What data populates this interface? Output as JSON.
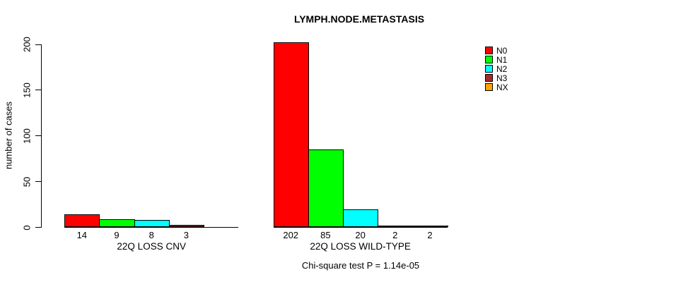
{
  "chart_data": {
    "type": "bar",
    "title": "LYMPH.NODE.METASTASIS",
    "ylabel": "number of cases",
    "xlabel": "",
    "ylim": [
      0,
      200
    ],
    "yticks": [
      0,
      50,
      100,
      150,
      200
    ],
    "grid": false,
    "legend_position": "right",
    "series_names": [
      "N0",
      "N1",
      "N2",
      "N3",
      "NX"
    ],
    "colors": [
      "#FF0000",
      "#00FF00",
      "#00FFFF",
      "#A52A2A",
      "#FFA500"
    ],
    "groups": [
      {
        "label": "22Q LOSS CNV",
        "values": [
          14,
          9,
          8,
          3,
          0
        ],
        "bar_labels": [
          "14",
          "9",
          "8",
          "3",
          ""
        ]
      },
      {
        "label": "22Q LOSS WILD-TYPE",
        "values": [
          202,
          85,
          20,
          2,
          2
        ],
        "bar_labels": [
          "202",
          "85",
          "20",
          "2",
          "2"
        ]
      }
    ],
    "annotation": "Chi-square test P = 1.14e-05"
  }
}
